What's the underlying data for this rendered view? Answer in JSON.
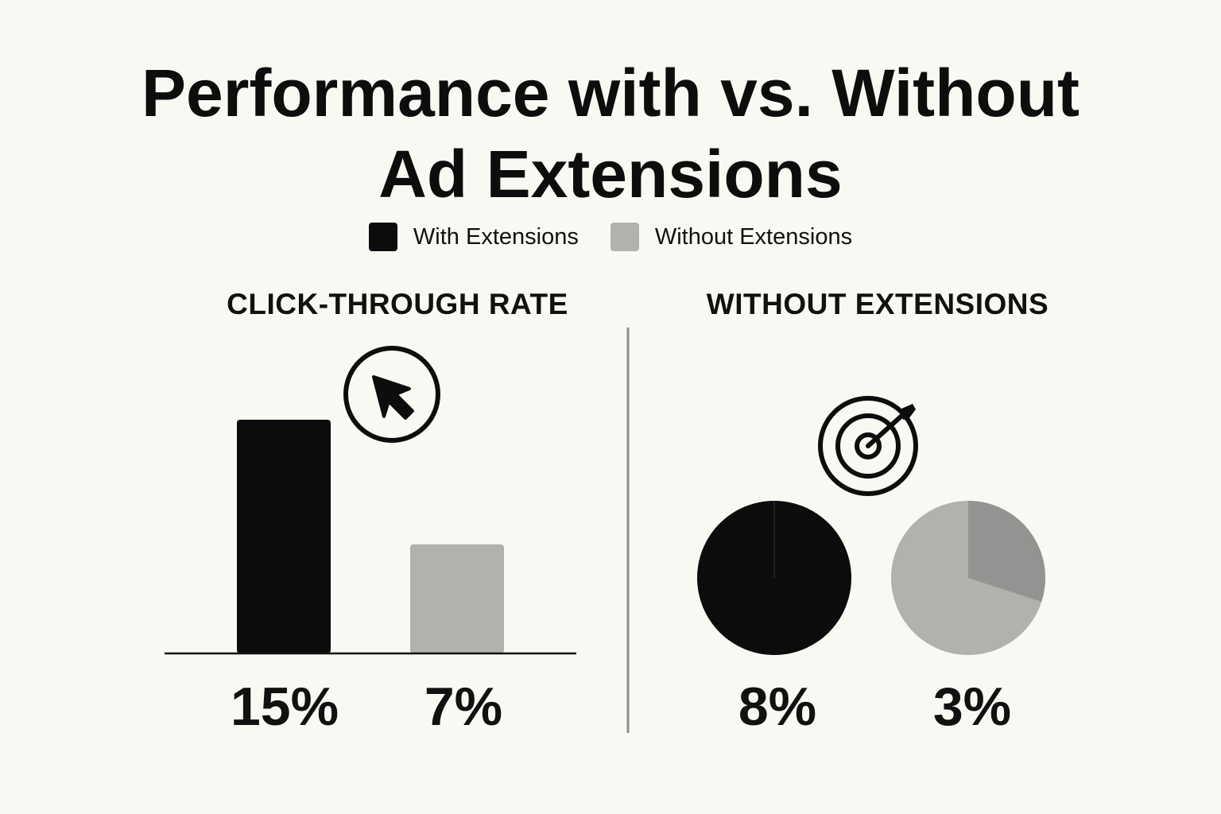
{
  "title": {
    "line1": "Performance with vs. Without",
    "line2": "Ad Extensions"
  },
  "legend": [
    {
      "label": "With Extensions",
      "color": "#0b0c0b"
    },
    {
      "label": "Without Extensions",
      "color": "#b1b1ae"
    }
  ],
  "icons": {
    "left": "cursor-arrow-icon",
    "right": "target-dart-icon"
  },
  "colors": {
    "with": "#0b0c0b",
    "without": "#b1b1ae",
    "without_slice": "#939391",
    "axis": "#111111",
    "divider": "#8e8e8e"
  },
  "chart_data": [
    {
      "type": "bar",
      "title": "CLICK-THROUGH RATE",
      "categories": [
        "With Extensions",
        "Without Extensions"
      ],
      "values": [
        15,
        7
      ],
      "value_labels": [
        "15%",
        "7%"
      ],
      "units": "%"
    },
    {
      "type": "pie",
      "title": "WITHOUT EXTENSIONS",
      "pies": [
        {
          "series": "With Extensions",
          "value_label": "8%",
          "slice_fraction": 1.0
        },
        {
          "series": "Without Extensions",
          "value_label": "3%",
          "slice_fraction": 0.3
        }
      ]
    }
  ]
}
